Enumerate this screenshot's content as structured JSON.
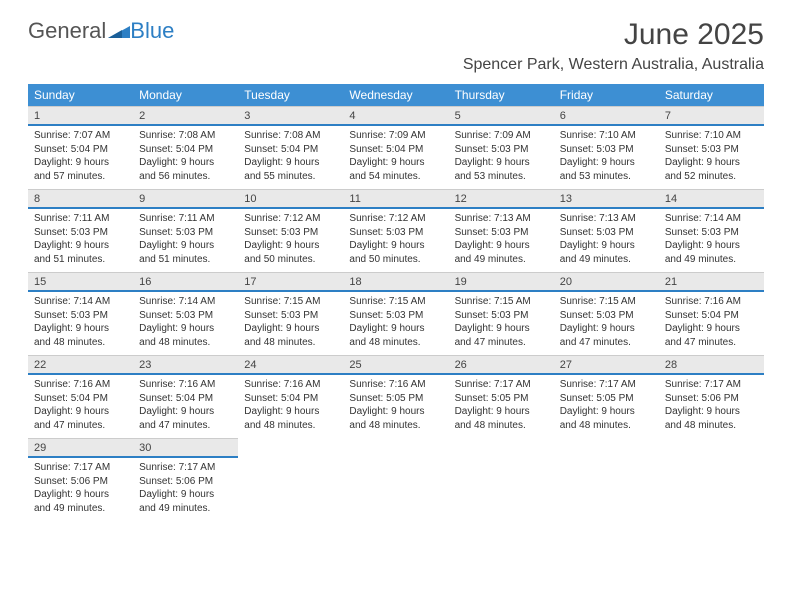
{
  "brand": {
    "part1": "General",
    "part2": "Blue"
  },
  "title": "June 2025",
  "location": "Spencer Park, Western Australia, Australia",
  "colors": {
    "header_bg": "#3d8fd3",
    "accent": "#2d7fc4",
    "daynum_bg": "#e9e9e9",
    "text": "#333333"
  },
  "weekdays": [
    "Sunday",
    "Monday",
    "Tuesday",
    "Wednesday",
    "Thursday",
    "Friday",
    "Saturday"
  ],
  "days": [
    {
      "n": "1",
      "sr": "7:07 AM",
      "ss": "5:04 PM",
      "dl1": "Daylight: 9 hours",
      "dl2": "and 57 minutes."
    },
    {
      "n": "2",
      "sr": "7:08 AM",
      "ss": "5:04 PM",
      "dl1": "Daylight: 9 hours",
      "dl2": "and 56 minutes."
    },
    {
      "n": "3",
      "sr": "7:08 AM",
      "ss": "5:04 PM",
      "dl1": "Daylight: 9 hours",
      "dl2": "and 55 minutes."
    },
    {
      "n": "4",
      "sr": "7:09 AM",
      "ss": "5:04 PM",
      "dl1": "Daylight: 9 hours",
      "dl2": "and 54 minutes."
    },
    {
      "n": "5",
      "sr": "7:09 AM",
      "ss": "5:03 PM",
      "dl1": "Daylight: 9 hours",
      "dl2": "and 53 minutes."
    },
    {
      "n": "6",
      "sr": "7:10 AM",
      "ss": "5:03 PM",
      "dl1": "Daylight: 9 hours",
      "dl2": "and 53 minutes."
    },
    {
      "n": "7",
      "sr": "7:10 AM",
      "ss": "5:03 PM",
      "dl1": "Daylight: 9 hours",
      "dl2": "and 52 minutes."
    },
    {
      "n": "8",
      "sr": "7:11 AM",
      "ss": "5:03 PM",
      "dl1": "Daylight: 9 hours",
      "dl2": "and 51 minutes."
    },
    {
      "n": "9",
      "sr": "7:11 AM",
      "ss": "5:03 PM",
      "dl1": "Daylight: 9 hours",
      "dl2": "and 51 minutes."
    },
    {
      "n": "10",
      "sr": "7:12 AM",
      "ss": "5:03 PM",
      "dl1": "Daylight: 9 hours",
      "dl2": "and 50 minutes."
    },
    {
      "n": "11",
      "sr": "7:12 AM",
      "ss": "5:03 PM",
      "dl1": "Daylight: 9 hours",
      "dl2": "and 50 minutes."
    },
    {
      "n": "12",
      "sr": "7:13 AM",
      "ss": "5:03 PM",
      "dl1": "Daylight: 9 hours",
      "dl2": "and 49 minutes."
    },
    {
      "n": "13",
      "sr": "7:13 AM",
      "ss": "5:03 PM",
      "dl1": "Daylight: 9 hours",
      "dl2": "and 49 minutes."
    },
    {
      "n": "14",
      "sr": "7:14 AM",
      "ss": "5:03 PM",
      "dl1": "Daylight: 9 hours",
      "dl2": "and 49 minutes."
    },
    {
      "n": "15",
      "sr": "7:14 AM",
      "ss": "5:03 PM",
      "dl1": "Daylight: 9 hours",
      "dl2": "and 48 minutes."
    },
    {
      "n": "16",
      "sr": "7:14 AM",
      "ss": "5:03 PM",
      "dl1": "Daylight: 9 hours",
      "dl2": "and 48 minutes."
    },
    {
      "n": "17",
      "sr": "7:15 AM",
      "ss": "5:03 PM",
      "dl1": "Daylight: 9 hours",
      "dl2": "and 48 minutes."
    },
    {
      "n": "18",
      "sr": "7:15 AM",
      "ss": "5:03 PM",
      "dl1": "Daylight: 9 hours",
      "dl2": "and 48 minutes."
    },
    {
      "n": "19",
      "sr": "7:15 AM",
      "ss": "5:03 PM",
      "dl1": "Daylight: 9 hours",
      "dl2": "and 47 minutes."
    },
    {
      "n": "20",
      "sr": "7:15 AM",
      "ss": "5:03 PM",
      "dl1": "Daylight: 9 hours",
      "dl2": "and 47 minutes."
    },
    {
      "n": "21",
      "sr": "7:16 AM",
      "ss": "5:04 PM",
      "dl1": "Daylight: 9 hours",
      "dl2": "and 47 minutes."
    },
    {
      "n": "22",
      "sr": "7:16 AM",
      "ss": "5:04 PM",
      "dl1": "Daylight: 9 hours",
      "dl2": "and 47 minutes."
    },
    {
      "n": "23",
      "sr": "7:16 AM",
      "ss": "5:04 PM",
      "dl1": "Daylight: 9 hours",
      "dl2": "and 47 minutes."
    },
    {
      "n": "24",
      "sr": "7:16 AM",
      "ss": "5:04 PM",
      "dl1": "Daylight: 9 hours",
      "dl2": "and 48 minutes."
    },
    {
      "n": "25",
      "sr": "7:16 AM",
      "ss": "5:05 PM",
      "dl1": "Daylight: 9 hours",
      "dl2": "and 48 minutes."
    },
    {
      "n": "26",
      "sr": "7:17 AM",
      "ss": "5:05 PM",
      "dl1": "Daylight: 9 hours",
      "dl2": "and 48 minutes."
    },
    {
      "n": "27",
      "sr": "7:17 AM",
      "ss": "5:05 PM",
      "dl1": "Daylight: 9 hours",
      "dl2": "and 48 minutes."
    },
    {
      "n": "28",
      "sr": "7:17 AM",
      "ss": "5:06 PM",
      "dl1": "Daylight: 9 hours",
      "dl2": "and 48 minutes."
    },
    {
      "n": "29",
      "sr": "7:17 AM",
      "ss": "5:06 PM",
      "dl1": "Daylight: 9 hours",
      "dl2": "and 49 minutes."
    },
    {
      "n": "30",
      "sr": "7:17 AM",
      "ss": "5:06 PM",
      "dl1": "Daylight: 9 hours",
      "dl2": "and 49 minutes."
    }
  ],
  "labels": {
    "sunrise_prefix": "Sunrise: ",
    "sunset_prefix": "Sunset: "
  }
}
